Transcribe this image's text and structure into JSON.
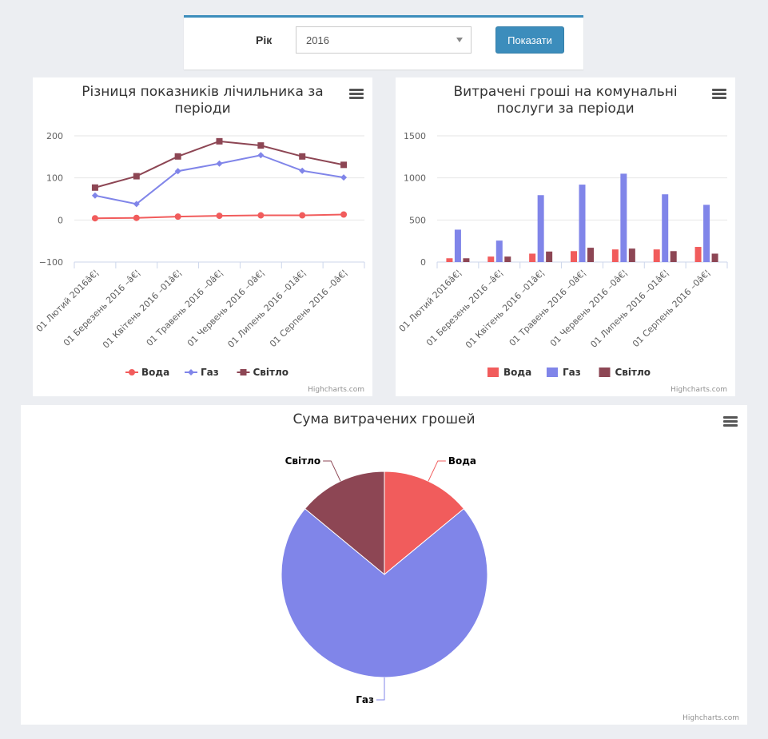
{
  "filter": {
    "year_label": "Рік",
    "year_value": "2016",
    "show_button": "Показати"
  },
  "credits": "Highcharts.com",
  "colors": {
    "water": "#f15c5c",
    "gas": "#8085e9",
    "light": "#8d4654",
    "accent": "#3c8dbc"
  },
  "chart_data": [
    {
      "type": "line",
      "title": "Різниця показників лічильника за періоди",
      "categories": [
        "01 Лютий 2016â€¦",
        "01 Березень 2016 –â€¦",
        "01 Квітень 2016 –01â€¦",
        "01 Травень 2016 –0â€¦",
        "01 Червень 2016 –0â€¦",
        "01 Липень 2016 –01â€¦",
        "01 Серпень 2016 –0â€¦"
      ],
      "yticks": [
        "200",
        "100",
        "0",
        "−100"
      ],
      "ylim": [
        -100,
        200
      ],
      "series": [
        {
          "name": "Вода",
          "color": "#f15c5c",
          "marker": "circle",
          "values": [
            4,
            5,
            8,
            10,
            11,
            11,
            13
          ]
        },
        {
          "name": "Газ",
          "color": "#8085e9",
          "marker": "diamond",
          "values": [
            58,
            38,
            116,
            134,
            154,
            117,
            101
          ]
        },
        {
          "name": "Світло",
          "color": "#8d4654",
          "marker": "square",
          "values": [
            77,
            104,
            151,
            187,
            177,
            151,
            131
          ]
        }
      ]
    },
    {
      "type": "bar",
      "title": "Витрачені гроші на комунальні послуги за періоди",
      "categories": [
        "01 Лютий 2016â€¦",
        "01 Березень 2016 –â€¦",
        "01 Квітень 2016 –01â€¦",
        "01 Травень 2016 –0â€¦",
        "01 Червень 2016 –0â€¦",
        "01 Липень 2016 –01â€¦",
        "01 Серпень 2016 –0â€¦"
      ],
      "yticks": [
        "1500",
        "1000",
        "500",
        "0"
      ],
      "ylim": [
        0,
        1500
      ],
      "series": [
        {
          "name": "Вода",
          "color": "#f15c5c",
          "values": [
            45,
            65,
            100,
            130,
            150,
            150,
            180
          ]
        },
        {
          "name": "Газ",
          "color": "#8085e9",
          "values": [
            385,
            255,
            795,
            920,
            1050,
            805,
            680
          ]
        },
        {
          "name": "Світло",
          "color": "#8d4654",
          "values": [
            45,
            65,
            125,
            170,
            160,
            130,
            100
          ]
        }
      ]
    },
    {
      "type": "pie",
      "title": "Сума витрачених грошей",
      "slices": [
        {
          "name": "Вода",
          "color": "#f15c5c",
          "value": 14
        },
        {
          "name": "Газ",
          "color": "#8085e9",
          "value": 72
        },
        {
          "name": "Світло",
          "color": "#8d4654",
          "value": 14
        }
      ]
    }
  ]
}
